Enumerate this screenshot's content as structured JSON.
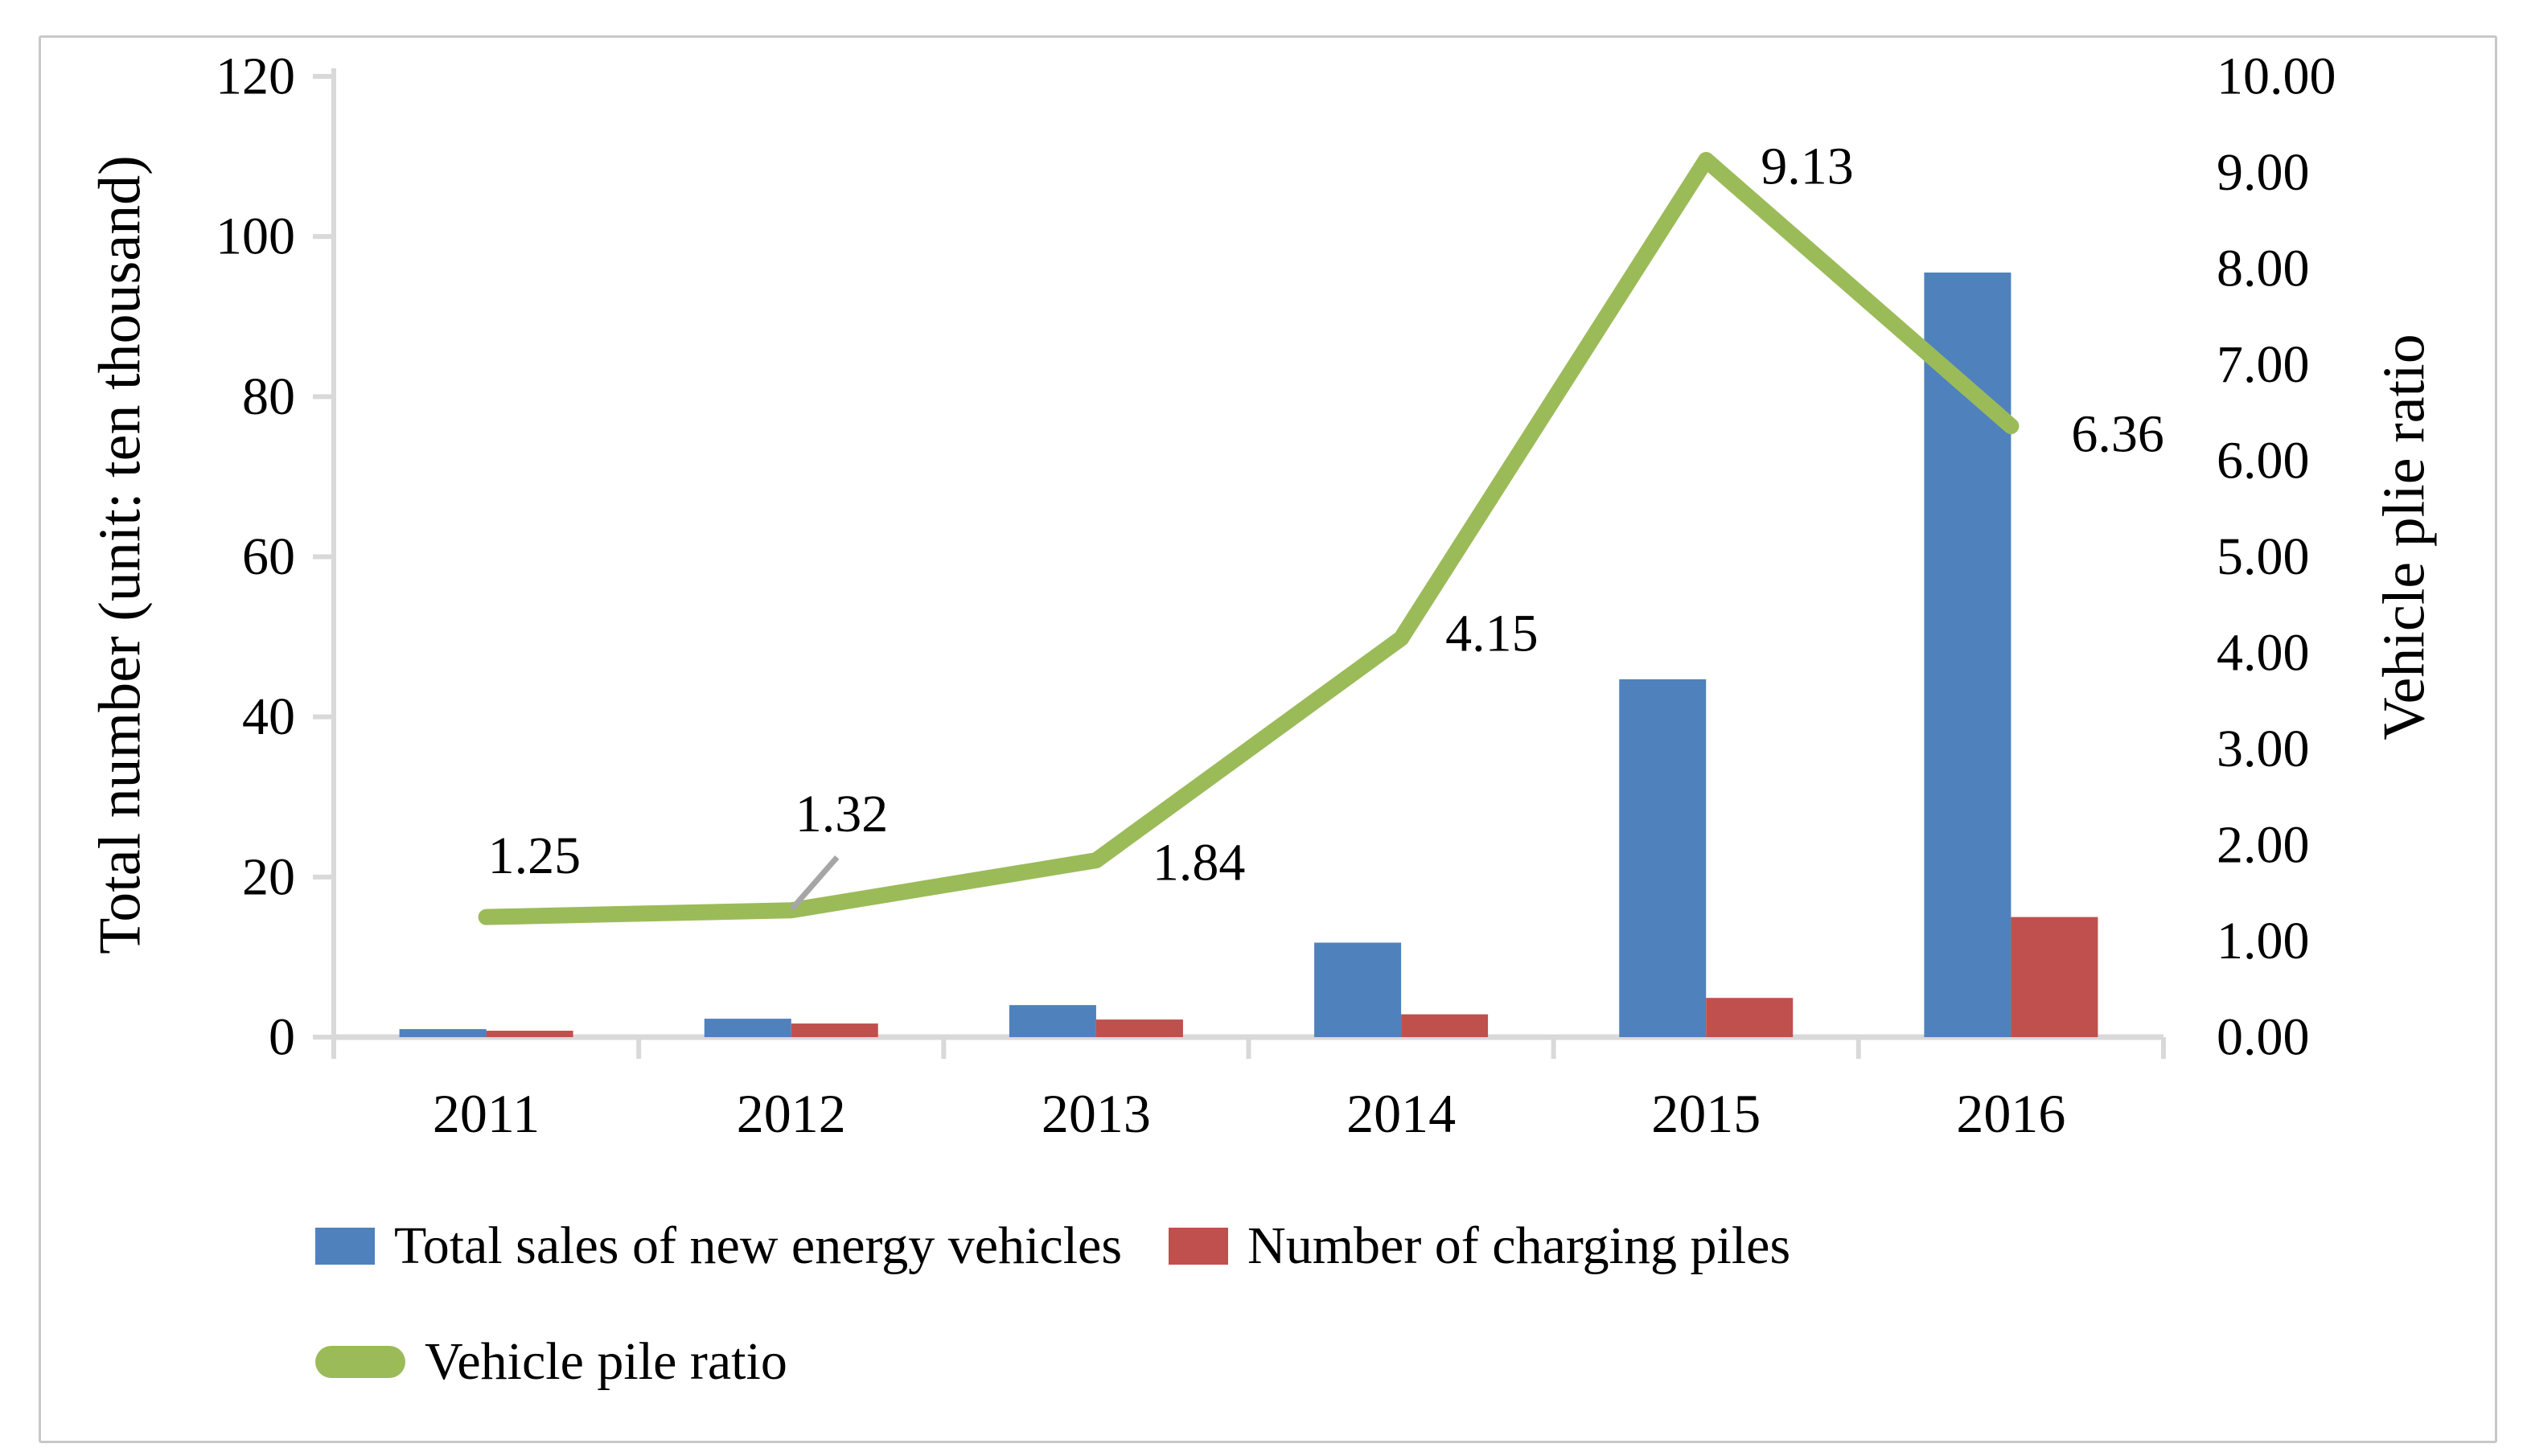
{
  "figure": {
    "background": "#ffffff",
    "border_color": "#c8c8c8"
  },
  "chart_data": {
    "type": "bar",
    "subtype": "bar-and-line-combo",
    "categories": [
      "2011",
      "2012",
      "2013",
      "2014",
      "2015",
      "2016"
    ],
    "series": [
      {
        "name": "Total sales of new energy vehicles",
        "type": "bar",
        "axis": "left",
        "color": "#4F81BD",
        "values": [
          1.0,
          2.3,
          4.0,
          11.8,
          44.7,
          95.5
        ]
      },
      {
        "name": "Number of charging piles",
        "type": "bar",
        "axis": "left",
        "color": "#C0504D",
        "values": [
          0.8,
          1.7,
          2.2,
          2.85,
          4.9,
          15.0
        ]
      },
      {
        "name": "Vehicle pile ratio",
        "type": "line",
        "axis": "right",
        "color": "#9BBB59",
        "values": [
          1.25,
          1.32,
          1.84,
          4.15,
          9.13,
          6.36
        ],
        "data_labels": [
          "1.25",
          "1.32",
          "1.84",
          "4.15",
          "9.13",
          "6.36"
        ]
      }
    ],
    "left_axis": {
      "title": "Total number (unit: ten thousand)",
      "min": 0,
      "max": 120,
      "step": 20,
      "ticks": [
        "0",
        "20",
        "40",
        "60",
        "80",
        "100",
        "120"
      ]
    },
    "right_axis": {
      "title": "Vehicle plie ratio",
      "min": 0,
      "max": 10,
      "step": 1,
      "ticks": [
        "0.00",
        "1.00",
        "2.00",
        "3.00",
        "4.00",
        "5.00",
        "6.00",
        "7.00",
        "8.00",
        "9.00",
        "10.00"
      ]
    },
    "grid": "off",
    "legend_position": "bottom-left",
    "annotation_colors": {
      "leader_line": "#a6a6a6",
      "axis_line": "#d9d9d9"
    }
  },
  "legend": {
    "items": [
      {
        "label": "Total sales of new energy vehicles",
        "color": "#4F81BD",
        "shape": "square"
      },
      {
        "label": "Number of charging piles",
        "color": "#C0504D",
        "shape": "square"
      },
      {
        "label": "Vehicle pile ratio",
        "color": "#9BBB59",
        "shape": "line"
      }
    ]
  }
}
